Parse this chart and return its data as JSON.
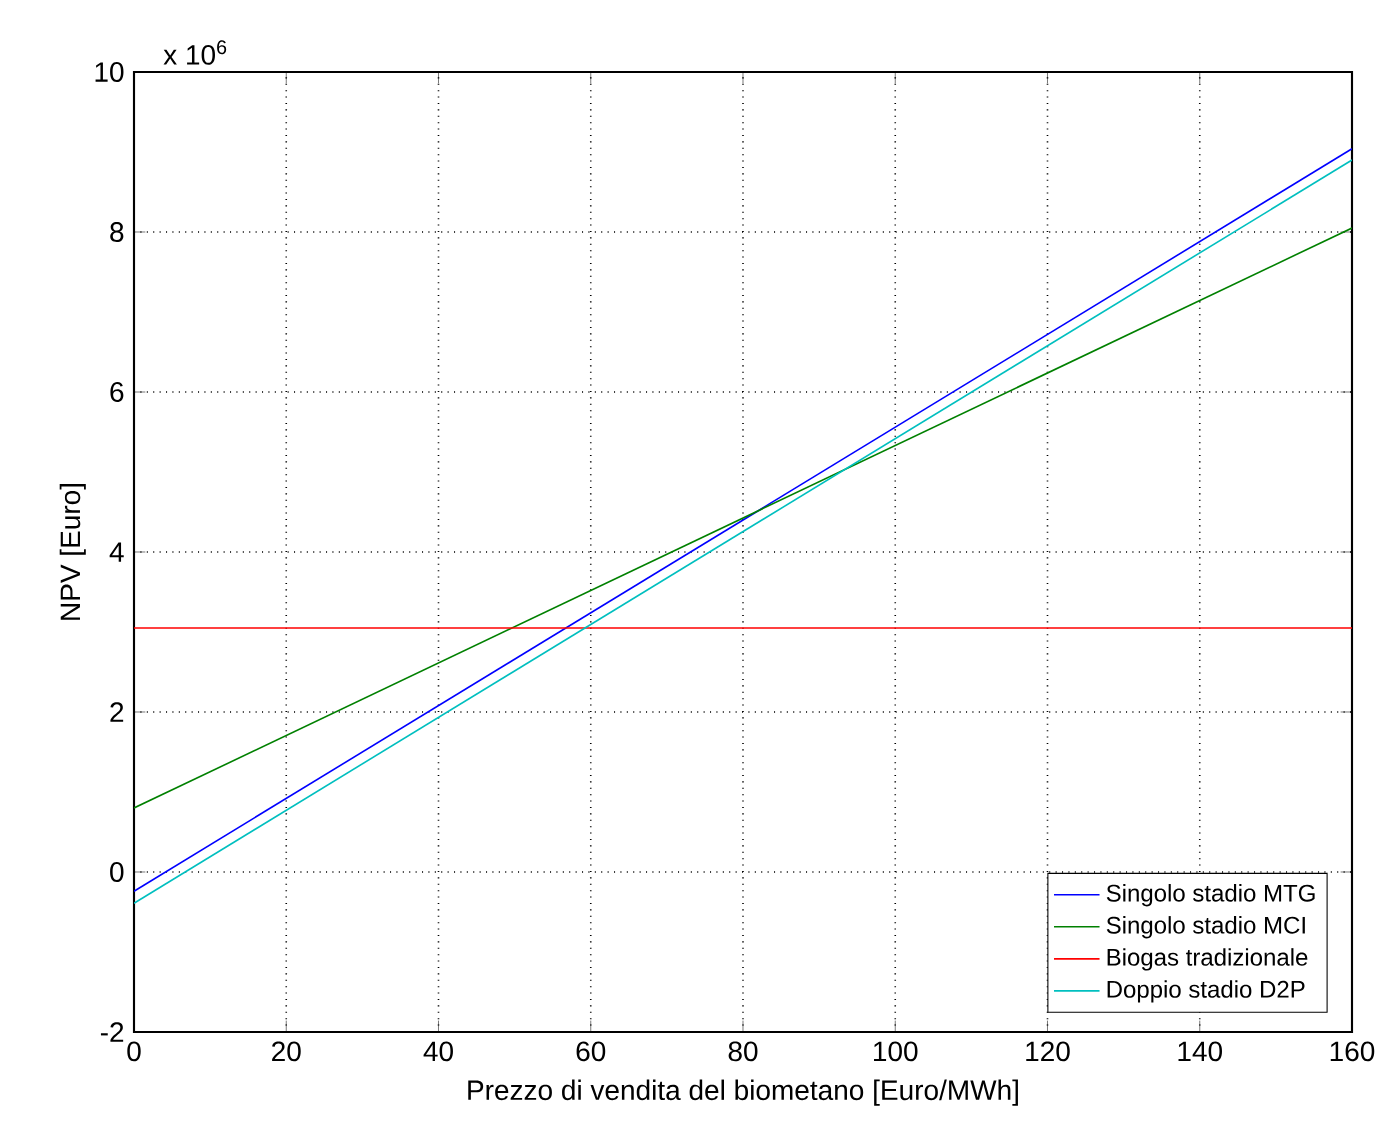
{
  "chart_data": {
    "type": "line",
    "xlabel": "Prezzo di vendita del biometano [Euro/MWh]",
    "ylabel": "NPV [Euro]",
    "annotations": [
      "x 10$^{6}$"
    ],
    "x": [
      0,
      160
    ],
    "series": [
      {
        "name": "Singolo stadio MTG",
        "color": "#0000ff",
        "values": [
          -0.24,
          9.04
        ]
      },
      {
        "name": "Singolo stadio MCI",
        "color": "#008000",
        "values": [
          0.8,
          8.05
        ]
      },
      {
        "name": "Biogas tradizionale",
        "color": "#ff0000",
        "values": [
          3.05,
          3.05
        ]
      },
      {
        "name": "Doppio stadio D2P",
        "color": "#00bfbf",
        "values": [
          -0.39,
          8.9
        ]
      }
    ],
    "xlim": [
      0,
      160
    ],
    "xticks": [
      0,
      20,
      40,
      60,
      80,
      100,
      120,
      140,
      160
    ],
    "ylim": [
      -2,
      10
    ],
    "yticks": [
      -2,
      0,
      2,
      4,
      6,
      8,
      10
    ],
    "grid": true,
    "legend": "bottom right",
    "marker": "none",
    "line_style": "solid"
  }
}
